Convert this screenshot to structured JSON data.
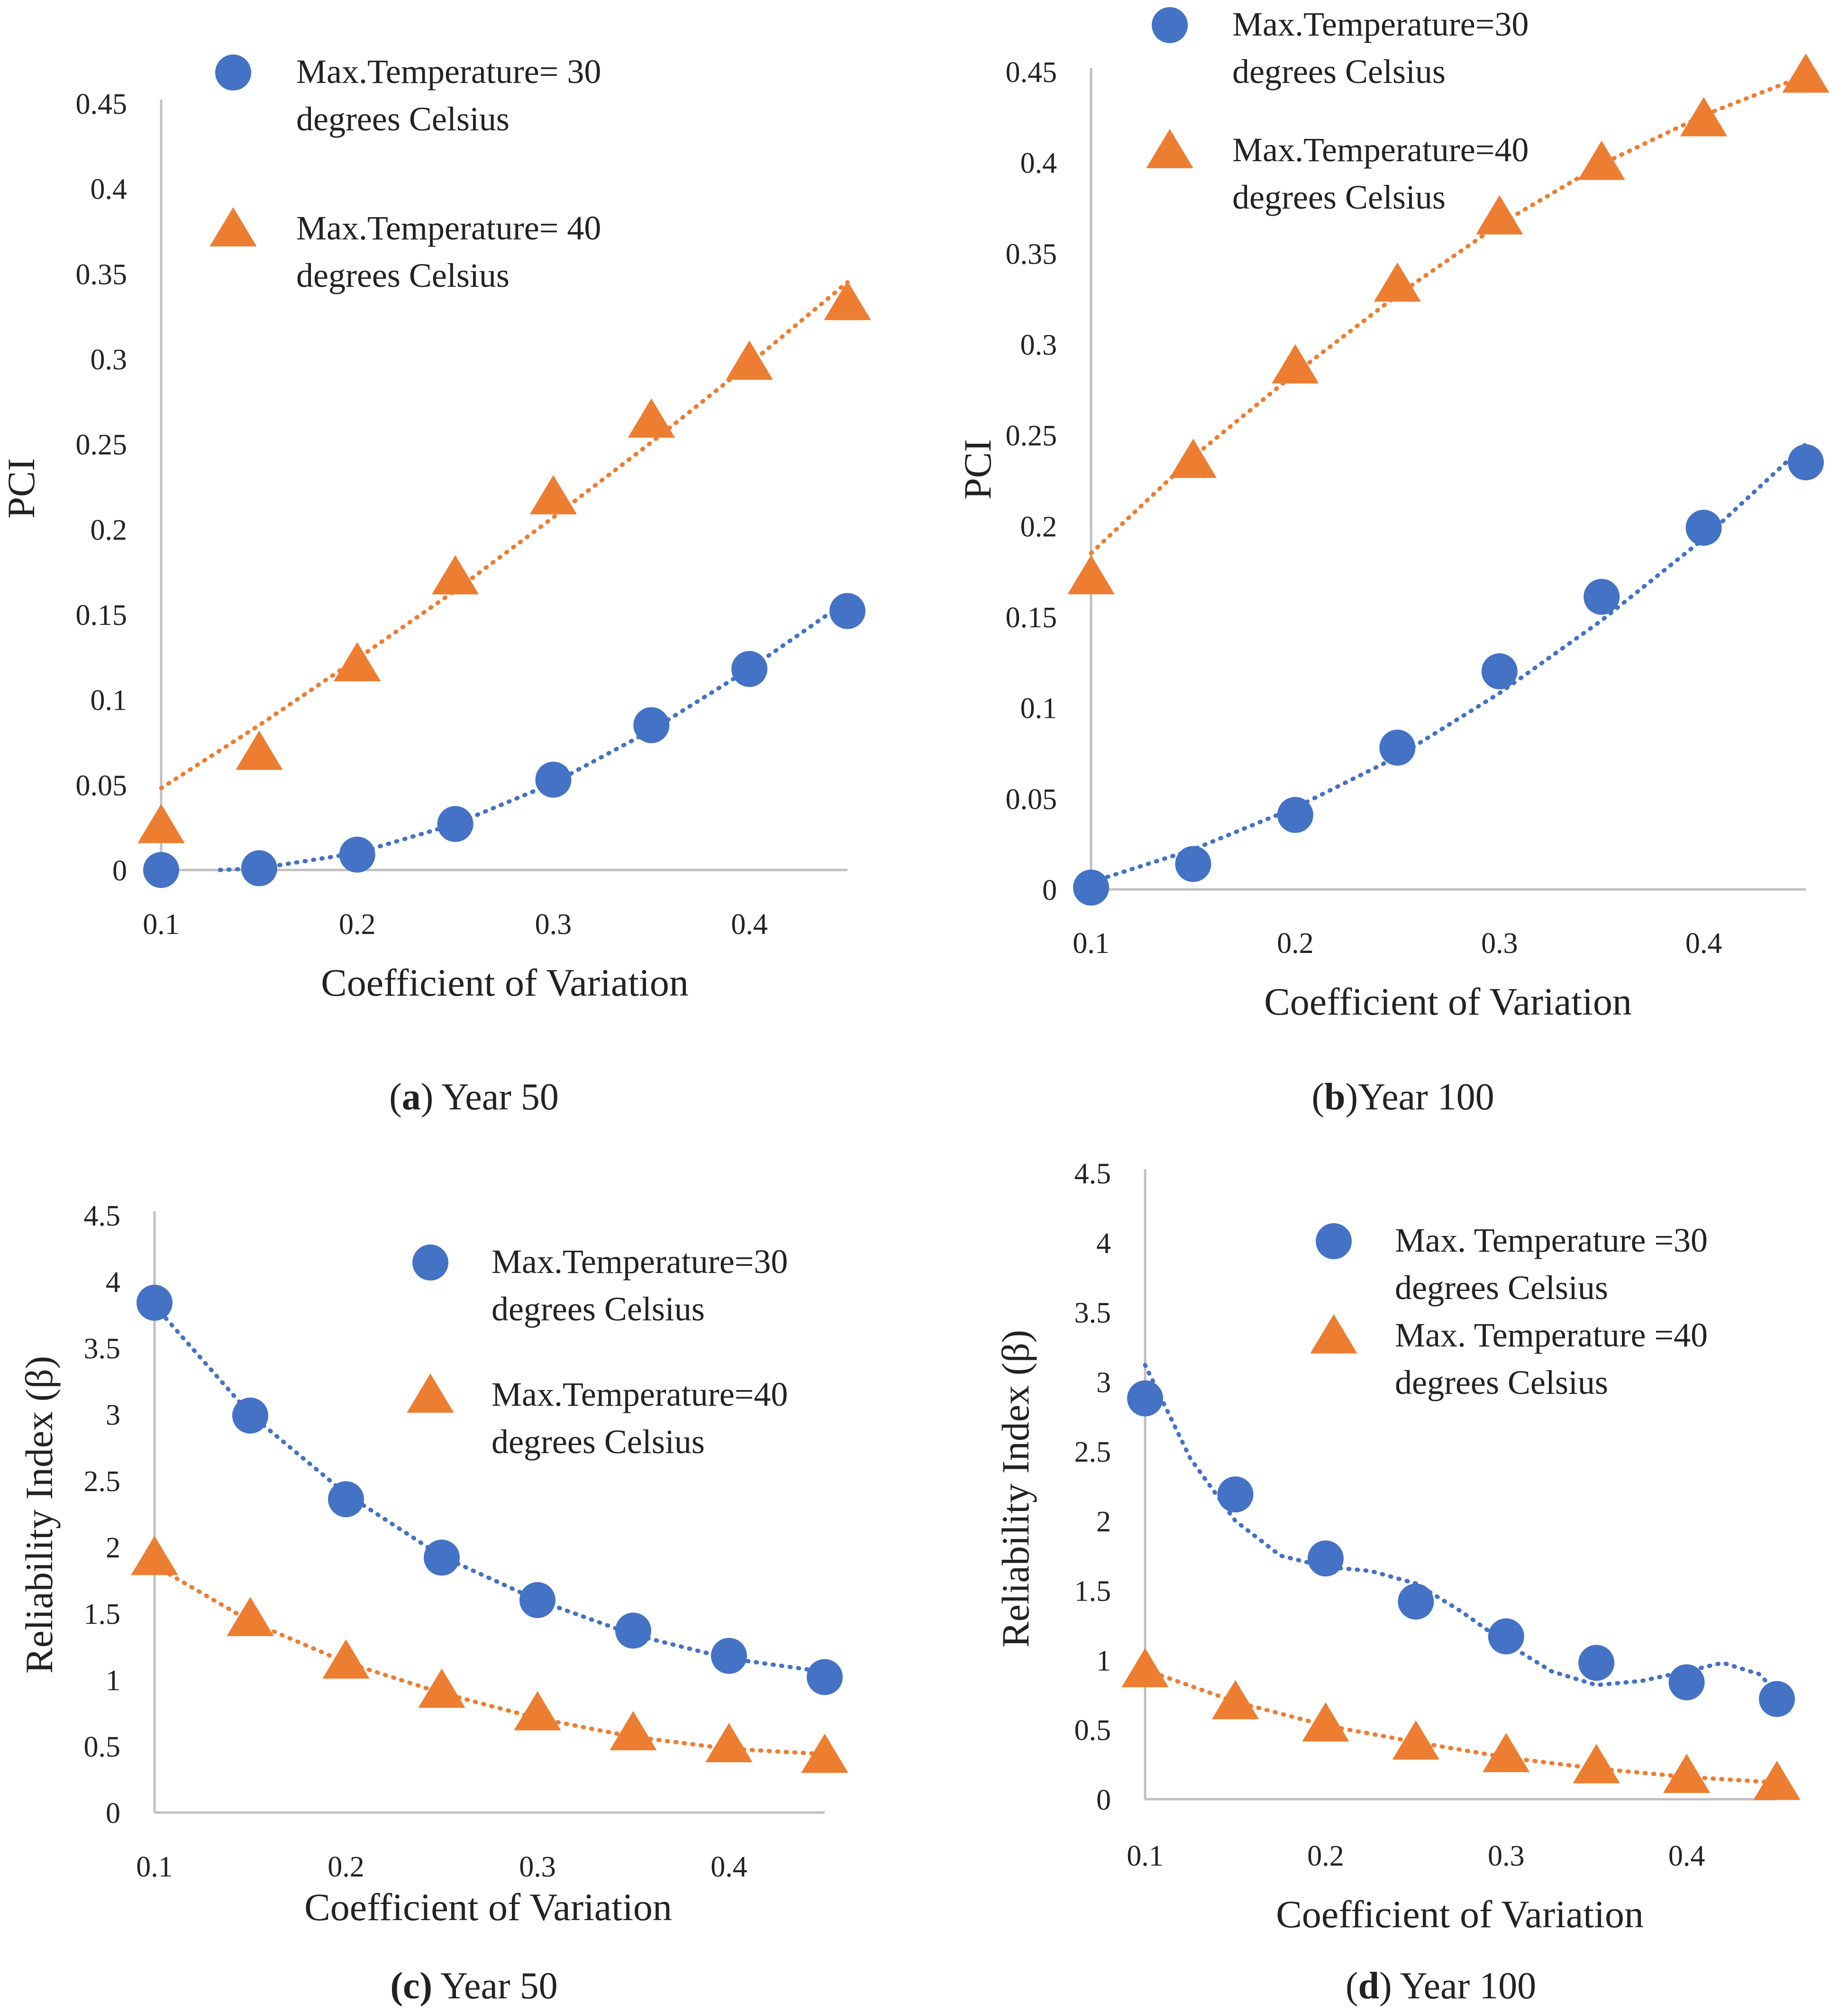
{
  "colors": {
    "blue": "#4472C4",
    "orange": "#ED7D31",
    "axis": "#BFBFBF"
  },
  "chart_data": [
    {
      "type": "scatter",
      "xlabel": "Coefficient of Variation",
      "ylabel": "PCI",
      "xlim": [
        0.1,
        0.45
      ],
      "ylim": [
        0,
        0.45
      ],
      "xticks": [
        "0.1",
        "0.2",
        "0.3",
        "0.4"
      ],
      "yticks": [
        "0",
        "0.05",
        "0.1",
        "0.15",
        "0.2",
        "0.25",
        "0.3",
        "0.35",
        "0.4",
        "0.45"
      ],
      "grid": false,
      "legend_position": "top-left",
      "caption": {
        "prefix": "(",
        "label": "a",
        "text": ") Year 50"
      },
      "series": [
        {
          "name": "Max.Temperature= 30 degrees Celsius",
          "legend_lines": [
            "Max.Temperature= 30",
            "degrees Celsius"
          ],
          "marker": "circle",
          "color": "#4472C4",
          "x": [
            0.1,
            0.15,
            0.2,
            0.25,
            0.3,
            0.35,
            0.4,
            0.45
          ],
          "y": [
            0,
            0.001,
            0.009,
            0.027,
            0.053,
            0.085,
            0.118,
            0.152
          ],
          "trend": {
            "x": [
              0.13,
              0.15,
              0.2,
              0.25,
              0.3,
              0.35,
              0.4,
              0.45
            ],
            "y": [
              0,
              0.001,
              0.01,
              0.027,
              0.051,
              0.082,
              0.118,
              0.158
            ]
          }
        },
        {
          "name": "Max.Temperature= 40 degrees Celsius",
          "legend_lines": [
            "Max.Temperature= 40",
            "degrees Celsius"
          ],
          "marker": "triangle",
          "color": "#ED7D31",
          "x": [
            0.1,
            0.15,
            0.2,
            0.25,
            0.3,
            0.35,
            0.4,
            0.45
          ],
          "y": [
            0.026,
            0.069,
            0.121,
            0.172,
            0.219,
            0.264,
            0.298,
            0.333
          ],
          "trend": {
            "x": [
              0.1,
              0.15,
              0.2,
              0.25,
              0.3,
              0.35,
              0.4,
              0.45
            ],
            "y": [
              0.048,
              0.085,
              0.124,
              0.164,
              0.207,
              0.251,
              0.297,
              0.345
            ]
          }
        }
      ]
    },
    {
      "type": "scatter",
      "xlabel": "Coefficient of Variation",
      "ylabel": "PCI",
      "xlim": [
        0.1,
        0.45
      ],
      "ylim": [
        0,
        0.45
      ],
      "xticks": [
        "0.1",
        "0.2",
        "0.3",
        "0.4"
      ],
      "yticks": [
        "0",
        "0.05",
        "0.1",
        "0.15",
        "0.2",
        "0.25",
        "0.3",
        "0.35",
        "0.4",
        "0.45"
      ],
      "grid": false,
      "legend_position": "top-left",
      "caption": {
        "prefix": "(",
        "label": "b",
        "text": ")Year 100"
      },
      "series": [
        {
          "name": "Max.Temperature=30 degrees Celsius",
          "legend_lines": [
            "Max.Temperature=30",
            "degrees Celsius"
          ],
          "marker": "circle",
          "color": "#4472C4",
          "x": [
            0.1,
            0.15,
            0.2,
            0.25,
            0.3,
            0.35,
            0.4,
            0.45
          ],
          "y": [
            0.001,
            0.014,
            0.041,
            0.078,
            0.12,
            0.161,
            0.199,
            0.235
          ],
          "trend": {
            "x": [
              0.1,
              0.15,
              0.2,
              0.25,
              0.3,
              0.35,
              0.4,
              0.45
            ],
            "y": [
              0.004,
              0.022,
              0.045,
              0.073,
              0.108,
              0.148,
              0.193,
              0.245
            ]
          }
        },
        {
          "name": "Max.Temperature=40 degrees Celsius",
          "legend_lines": [
            "Max.Temperature=40",
            "degrees Celsius"
          ],
          "marker": "triangle",
          "color": "#ED7D31",
          "x": [
            0.1,
            0.15,
            0.2,
            0.25,
            0.3,
            0.35,
            0.4,
            0.45
          ],
          "y": [
            0.172,
            0.236,
            0.288,
            0.333,
            0.37,
            0.4,
            0.424,
            0.448
          ],
          "trend": {
            "x": [
              0.1,
              0.15,
              0.2,
              0.25,
              0.3,
              0.35,
              0.4,
              0.45
            ],
            "y": [
              0.185,
              0.238,
              0.284,
              0.327,
              0.366,
              0.399,
              0.426,
              0.448
            ]
          }
        }
      ]
    },
    {
      "type": "scatter",
      "xlabel": "Coefficient of Variation",
      "ylabel": "Reliability Index (β)",
      "xlim": [
        0.1,
        0.45
      ],
      "ylim": [
        0,
        4.5
      ],
      "xticks": [
        "0.1",
        "0.2",
        "0.3",
        "0.4"
      ],
      "yticks": [
        "0",
        "0.5",
        "1",
        "1.5",
        "2",
        "2.5",
        "3",
        "3.5",
        "4",
        "4.5"
      ],
      "grid": false,
      "legend_position": "top-right",
      "caption": {
        "prefix": "",
        "label": "(c)",
        "text": " Year 50"
      },
      "series": [
        {
          "name": "Max.Temperature=30 degrees Celsius",
          "legend_lines": [
            "Max.Temperature=30",
            "degrees Celsius"
          ],
          "marker": "circle",
          "color": "#4472C4",
          "x": [
            0.1,
            0.15,
            0.2,
            0.25,
            0.3,
            0.35,
            0.4,
            0.45
          ],
          "y": [
            3.84,
            2.99,
            2.36,
            1.92,
            1.6,
            1.37,
            1.18,
            1.02
          ],
          "trend": {
            "x": [
              0.1,
              0.15,
              0.2,
              0.25,
              0.3,
              0.35,
              0.4,
              0.45
            ],
            "y": [
              3.82,
              3.0,
              2.4,
              1.93,
              1.6,
              1.34,
              1.16,
              1.06
            ]
          }
        },
        {
          "name": "Max.Temperature=40 degrees Celsius",
          "legend_lines": [
            "Max.Temperature=40",
            "degrees Celsius"
          ],
          "marker": "triangle",
          "color": "#ED7D31",
          "x": [
            0.1,
            0.15,
            0.2,
            0.25,
            0.3,
            0.35,
            0.4,
            0.45
          ],
          "y": [
            1.92,
            1.46,
            1.14,
            0.92,
            0.75,
            0.6,
            0.51,
            0.43
          ],
          "trend": {
            "x": [
              0.1,
              0.15,
              0.2,
              0.25,
              0.3,
              0.35,
              0.4,
              0.45
            ],
            "y": [
              1.86,
              1.44,
              1.13,
              0.9,
              0.71,
              0.57,
              0.48,
              0.44
            ]
          }
        }
      ]
    },
    {
      "type": "scatter",
      "xlabel": "Coefficient of Variation",
      "ylabel": "Reliability Index (β)",
      "xlim": [
        0.1,
        0.45
      ],
      "ylim": [
        0,
        4.5
      ],
      "xticks": [
        "0.1",
        "0.2",
        "0.3",
        "0.4"
      ],
      "yticks": [
        "0",
        "0.5",
        "1",
        "1.5",
        "2",
        "2.5",
        "3",
        "3.5",
        "4",
        "4.5"
      ],
      "grid": false,
      "legend_position": "top-right",
      "caption": {
        "prefix": "(",
        "label": "d",
        "text": ") Year 100"
      },
      "series": [
        {
          "name": "Max. Temperature =30 degrees Celsius",
          "legend_lines": [
            "Max. Temperature =30",
            "degrees Celsius"
          ],
          "marker": "circle",
          "color": "#4472C4",
          "x": [
            0.1,
            0.15,
            0.2,
            0.25,
            0.3,
            0.35,
            0.4,
            0.45
          ],
          "y": [
            2.88,
            2.19,
            1.73,
            1.42,
            1.17,
            0.98,
            0.84,
            0.72
          ],
          "trend": {
            "x": [
              0.1,
              0.125,
              0.15,
              0.175,
              0.2,
              0.225,
              0.25,
              0.275,
              0.3,
              0.325,
              0.35,
              0.375,
              0.4,
              0.42,
              0.44,
              0.45
            ],
            "y": [
              3.12,
              2.45,
              2.0,
              1.75,
              1.67,
              1.64,
              1.55,
              1.35,
              1.12,
              0.92,
              0.82,
              0.85,
              0.92,
              0.98,
              0.9,
              0.77
            ]
          }
        },
        {
          "name": "Max. Temperature =40 degrees Celsius",
          "legend_lines": [
            "Max. Temperature =40",
            "degrees Celsius"
          ],
          "marker": "triangle",
          "color": "#ED7D31",
          "x": [
            0.1,
            0.15,
            0.2,
            0.25,
            0.3,
            0.35,
            0.4,
            0.45
          ],
          "y": [
            0.93,
            0.7,
            0.54,
            0.41,
            0.32,
            0.24,
            0.17,
            0.12
          ],
          "trend": {
            "x": [
              0.1,
              0.15,
              0.2,
              0.25,
              0.3,
              0.35,
              0.4,
              0.45
            ],
            "y": [
              0.93,
              0.7,
              0.53,
              0.41,
              0.3,
              0.22,
              0.16,
              0.12
            ]
          }
        }
      ]
    }
  ]
}
